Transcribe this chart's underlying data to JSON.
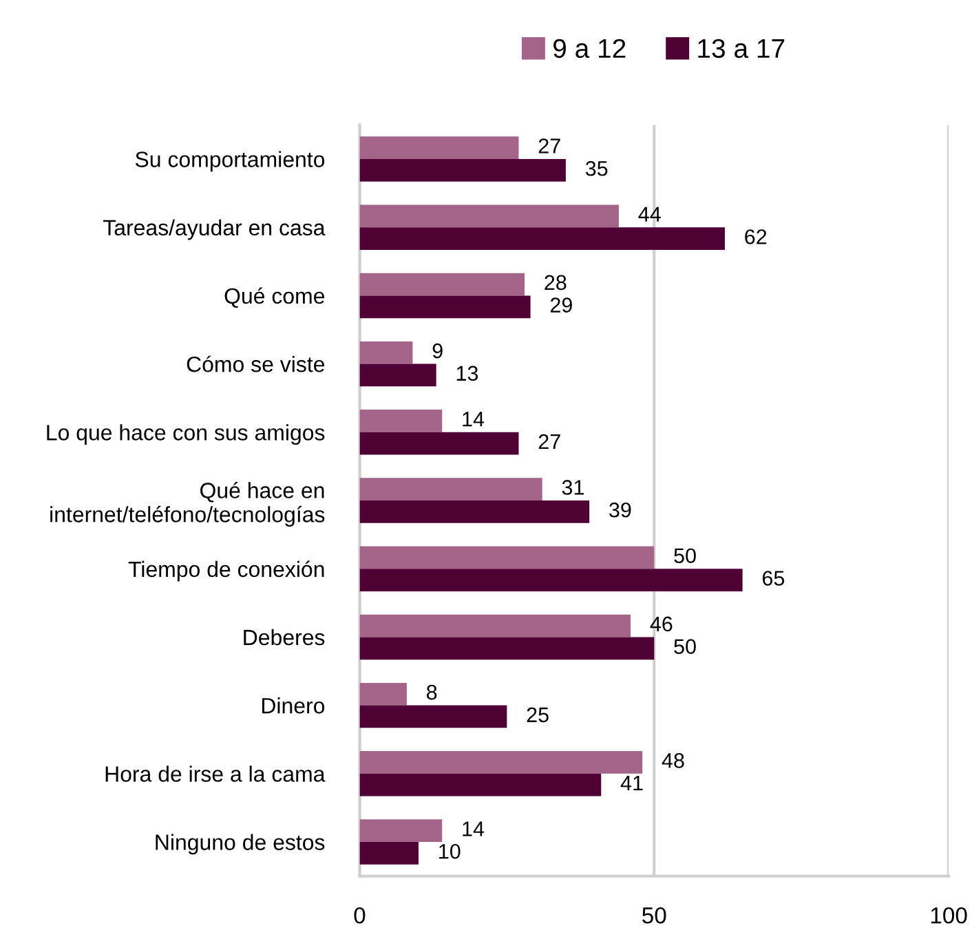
{
  "chart_data": {
    "type": "bar",
    "orientation": "horizontal",
    "categories": [
      "Su comportamiento",
      "Tareas/ayudar en casa",
      "Qué come",
      "Cómo se viste",
      "Lo que hace con sus amigos",
      "Qué hace en\ninternet/teléfono/tecnologías",
      "Tiempo de conexión",
      "Deberes",
      "Dinero",
      "Hora de irse a la cama",
      "Ninguno de estos"
    ],
    "series": [
      {
        "name": "9 a 12",
        "color": "#a36487",
        "values": [
          27,
          44,
          28,
          9,
          14,
          31,
          50,
          46,
          8,
          48,
          14
        ]
      },
      {
        "name": "13 a 17",
        "color": "#4f0034",
        "values": [
          35,
          62,
          29,
          13,
          27,
          39,
          65,
          50,
          25,
          41,
          10
        ]
      }
    ],
    "xlim": [
      0,
      100
    ],
    "xticks": [
      0,
      50,
      100
    ],
    "grid": "x",
    "legend": "top",
    "data_labels": true
  }
}
